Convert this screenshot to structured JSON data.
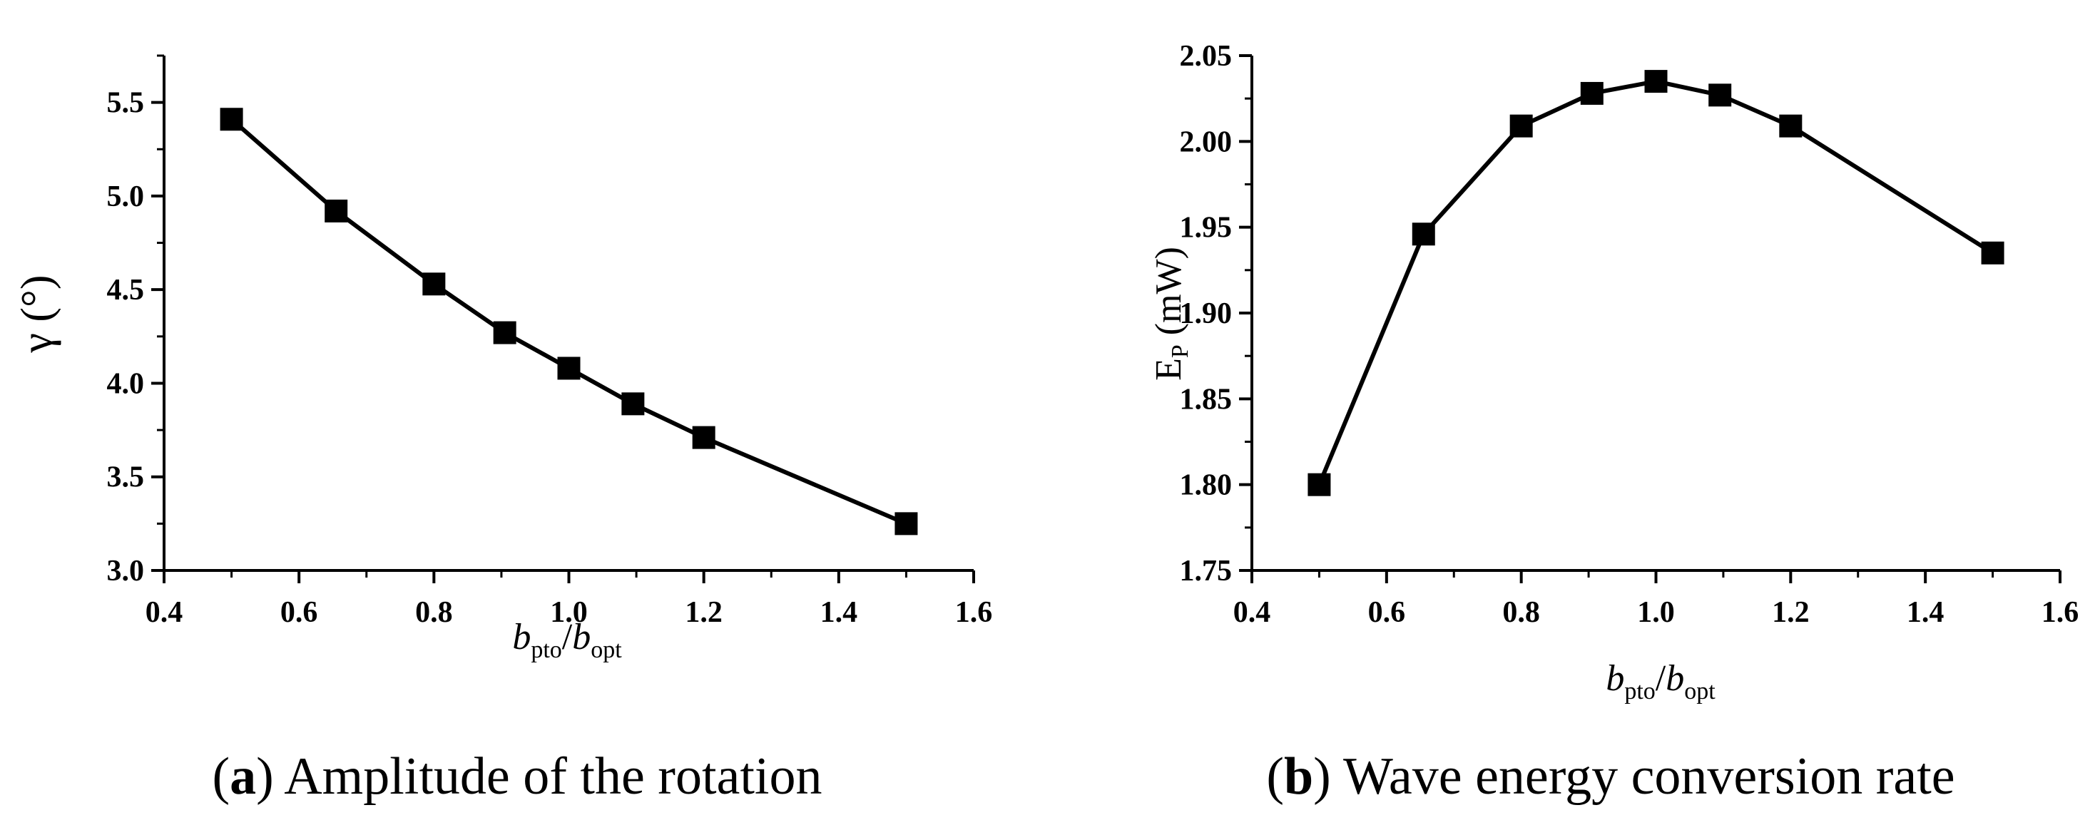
{
  "chart_data": [
    {
      "id": "a",
      "type": "line",
      "marker": "square",
      "color": "#000000",
      "x": [
        0.5,
        0.655,
        0.8,
        0.905,
        1.0,
        1.095,
        1.2,
        1.5
      ],
      "y": [
        5.41,
        4.92,
        4.53,
        4.27,
        4.08,
        3.89,
        3.71,
        3.25
      ],
      "xlim": [
        0.4,
        1.6
      ],
      "ylim": [
        3.0,
        5.75
      ],
      "xticks": [
        "0.4",
        "0.6",
        "0.8",
        "1.0",
        "1.2",
        "1.4",
        "1.6"
      ],
      "yticks": [
        "3.0",
        "3.5",
        "4.0",
        "4.5",
        "5.0",
        "5.5"
      ],
      "ylabel": "γ (°)",
      "xlabel_main": "b",
      "xlabel_sub1": "pto",
      "xlabel_sep": "/",
      "xlabel_sub2": "opt",
      "caption_letter": "a",
      "caption_text": "Amplitude of the rotation",
      "grid": false
    },
    {
      "id": "b",
      "type": "line",
      "marker": "square",
      "color": "#000000",
      "x": [
        0.5,
        0.655,
        0.8,
        0.905,
        1.0,
        1.095,
        1.2,
        1.5
      ],
      "y": [
        1.8,
        1.946,
        2.009,
        2.028,
        2.035,
        2.027,
        2.009,
        1.935
      ],
      "xlim": [
        0.4,
        1.6
      ],
      "ylim": [
        1.75,
        2.05
      ],
      "xticks": [
        "0.4",
        "0.6",
        "0.8",
        "1.0",
        "1.2",
        "1.4",
        "1.6"
      ],
      "yticks": [
        "1.75",
        "1.80",
        "1.85",
        "1.90",
        "1.95",
        "2.00",
        "2.05"
      ],
      "ylabel_main": "E",
      "ylabel_sub": "P",
      "ylabel_unit": " (mW)",
      "xlabel_main": "b",
      "xlabel_sub1": "pto",
      "xlabel_sep": "/",
      "xlabel_sub2": "opt",
      "caption_letter": "b",
      "caption_text": "Wave energy conversion rate",
      "grid": false
    }
  ],
  "captions": {
    "open_paren": "(",
    "close_paren": ")"
  }
}
